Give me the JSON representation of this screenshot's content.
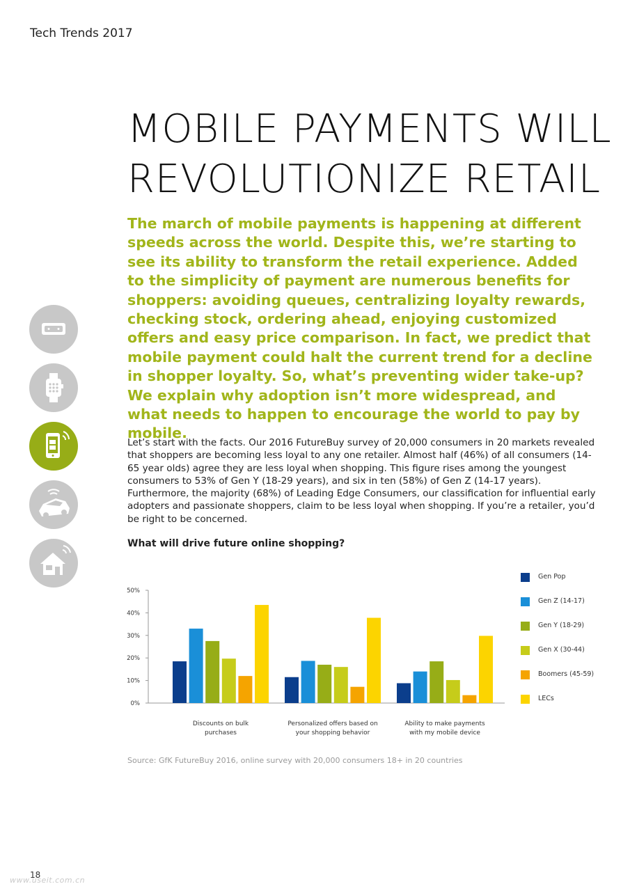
{
  "header": {
    "running_title": "Tech Trends 2017"
  },
  "title": {
    "line1": "MOBILE PAYMENTS WILL",
    "line2": "REVOLUTIONIZE RETAIL"
  },
  "lead": "The march of mobile payments is happening at different speeds across the world. Despite this, we’re starting to see its ability to transform the retail experience. Added to the simplicity of payment are numerous benefits for shoppers: avoiding queues, centralizing loyalty rewards, checking stock, ordering ahead, enjoying customized offers and easy price comparison. In fact, we predict that mobile payment could halt the current trend for a decline in shopper loyalty. So, what’s preventing wider take-up? We explain why adoption isn’t more widespread, and what needs to happen to encourage the world to pay by mobile.",
  "body": "Let’s start with the facts. Our 2016 FutureBuy survey of 20,000 consumers in 20 markets revealed that shoppers are becoming less loyal to any one retailer. Almost half (46%) of all consumers (14-65 year olds) agree they are less loyal when shopping. This figure rises among the youngest consumers to 53% of Gen Y (18-29 years), and six in ten (58%) of Gen Z (14-17 years). Furthermore, the majority (68%) of Leading Edge Consumers, our classification for influential early adopters and passionate shoppers, claim to be less loyal when shopping. If you’re a retailer, you’d be right to be concerned.",
  "chart_title": "What will drive future online shopping?",
  "source": "Source: GfK FutureBuy 2016, online survey with 20,000 consumers 18+ in 20 countries",
  "page_number": "18",
  "watermark": "www.useit.com.cn",
  "side_icons": [
    {
      "icon": "vr-headset-icon",
      "active": false
    },
    {
      "icon": "smartwatch-icon",
      "active": false
    },
    {
      "icon": "mobile-payment-icon",
      "active": true
    },
    {
      "icon": "connected-car-icon",
      "active": false
    },
    {
      "icon": "smart-home-icon",
      "active": false
    }
  ],
  "colors": {
    "accent_green": "#a1b51a",
    "gen_pop": "#0b3e8c",
    "gen_z": "#1a8fd8",
    "gen_y": "#97ad17",
    "gen_x": "#c6cc1a",
    "boomers": "#f5a400",
    "lecs": "#fcd400"
  },
  "chart_data": {
    "type": "bar",
    "categories": [
      "Discounts on bulk purchases",
      "Personalized offers based on your shopping behavior",
      "Ability to make payments with my mobile device"
    ],
    "category_lines": [
      [
        "Discounts on bulk",
        "purchases"
      ],
      [
        "Personalized offers based on",
        "your shopping behavior"
      ],
      [
        "Ability to make payments",
        "with my mobile device"
      ]
    ],
    "series": [
      {
        "name": "Gen Pop",
        "color": "#0b3e8c",
        "values": [
          18.5,
          11.5,
          8.8
        ]
      },
      {
        "name": "Gen Z (14-17)",
        "color": "#1a8fd8",
        "values": [
          33,
          18.7,
          14
        ]
      },
      {
        "name": "Gen Y (18-29)",
        "color": "#97ad17",
        "values": [
          27.5,
          17,
          18.5
        ]
      },
      {
        "name": "Gen X (30-44)",
        "color": "#c6cc1a",
        "values": [
          19.7,
          16,
          10.2
        ]
      },
      {
        "name": "Boomers (45-59)",
        "color": "#f5a400",
        "values": [
          12,
          7.2,
          3.5
        ]
      },
      {
        "name": "LECs",
        "color": "#fcd400",
        "values": [
          43.5,
          37.8,
          29.8
        ]
      }
    ],
    "y_ticks": [
      "0%",
      "10%",
      "20%",
      "30%",
      "40%",
      "50%"
    ],
    "ylim": [
      0,
      50
    ],
    "legend_position": "right",
    "grid": false
  }
}
